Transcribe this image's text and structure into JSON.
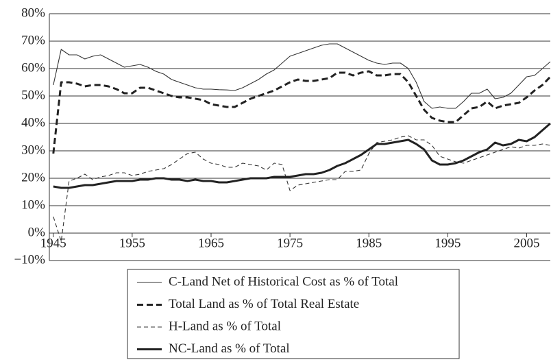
{
  "chart_data": {
    "type": "line",
    "x": [
      1945,
      1946,
      1947,
      1948,
      1949,
      1950,
      1951,
      1952,
      1953,
      1954,
      1955,
      1956,
      1957,
      1958,
      1959,
      1960,
      1961,
      1962,
      1963,
      1964,
      1965,
      1966,
      1967,
      1968,
      1969,
      1970,
      1971,
      1972,
      1973,
      1974,
      1975,
      1976,
      1977,
      1978,
      1979,
      1980,
      1981,
      1982,
      1983,
      1984,
      1985,
      1986,
      1987,
      1988,
      1989,
      1990,
      1991,
      1992,
      1993,
      1994,
      1995,
      1996,
      1997,
      1998,
      1999,
      2000,
      2001,
      2002,
      2003,
      2004,
      2005,
      2006,
      2007,
      2008
    ],
    "series": [
      {
        "name": "C-Land Net of Historical Cost as % of Total",
        "color": "#333333",
        "style": "solid",
        "weight": "thin",
        "values": [
          54,
          67,
          65,
          65,
          63.5,
          64.5,
          65,
          63.5,
          62,
          60.5,
          61,
          61.5,
          60.5,
          59,
          58,
          56,
          55,
          54,
          53,
          52.5,
          52.5,
          52.3,
          52.2,
          52,
          53,
          54.5,
          56,
          58,
          59.5,
          62,
          64.5,
          65.5,
          66.5,
          67.5,
          68.5,
          69,
          69,
          67.5,
          66,
          64.5,
          63,
          62,
          61.5,
          62,
          62,
          60,
          55,
          48,
          45.5,
          46,
          45.5,
          45.5,
          48,
          51,
          51,
          52.5,
          49,
          49.5,
          51,
          54,
          57,
          57.5,
          60,
          62.5
        ]
      },
      {
        "name": "Total Land as % of Total Real Estate",
        "color": "#222222",
        "style": "dashed",
        "weight": "thick",
        "values": [
          29,
          55,
          55,
          54.5,
          53.5,
          54,
          54,
          53.5,
          52.5,
          51,
          51,
          53,
          53,
          52,
          51,
          50,
          49.5,
          49.5,
          49,
          48.5,
          47,
          46.5,
          46,
          46,
          47.5,
          49,
          50,
          51,
          52,
          53.5,
          55,
          56,
          55.5,
          55.5,
          56,
          56.5,
          58.5,
          58.5,
          57.5,
          58.5,
          59,
          57.5,
          57.5,
          58,
          58,
          55,
          50,
          45,
          42,
          41,
          40.5,
          40.5,
          43,
          45.5,
          46,
          48,
          45.5,
          46.5,
          47,
          47.5,
          49.5,
          52,
          54,
          57
        ]
      },
      {
        "name": "H-Land as % of Total",
        "color": "#333333",
        "style": "dashed",
        "weight": "thin",
        "values": [
          6,
          -3,
          19,
          20,
          21.5,
          19.5,
          20.5,
          21,
          22,
          22,
          21,
          21.5,
          22.5,
          23,
          23.5,
          25,
          27,
          29,
          29.5,
          27,
          25.5,
          25,
          24,
          24,
          25.5,
          25,
          24.5,
          23,
          25.5,
          25,
          15.5,
          17.5,
          18,
          18.5,
          19,
          19.5,
          19.5,
          22.5,
          22.5,
          23,
          29,
          33,
          33.5,
          34,
          35,
          35.5,
          34,
          34,
          32,
          28,
          27,
          26,
          25.5,
          26.5,
          27.5,
          28.5,
          29.5,
          30.5,
          31.5,
          31,
          32,
          32,
          32.5,
          32
        ]
      },
      {
        "name": "NC-Land as % of Total",
        "color": "#222222",
        "style": "solid",
        "weight": "thick",
        "values": [
          17,
          16.5,
          16.5,
          17,
          17.5,
          17.5,
          18,
          18.5,
          19,
          19,
          19,
          19.5,
          19.5,
          20,
          20,
          19.5,
          19.5,
          19,
          19.5,
          19,
          19,
          18.5,
          18.5,
          19,
          19.5,
          20,
          20,
          20,
          20.5,
          20.5,
          20.5,
          21,
          21.5,
          21.5,
          22,
          23,
          24.5,
          25.5,
          27,
          28.5,
          30.5,
          32.5,
          32.5,
          33,
          33.5,
          34,
          32.5,
          30.5,
          26.5,
          25,
          25,
          25.5,
          26.5,
          28,
          29.5,
          30.5,
          33,
          32,
          32.5,
          34,
          33.5,
          35,
          37.5,
          40
        ]
      }
    ],
    "xlim": [
      1944.5,
      2008
    ],
    "xticks": [
      1945,
      1955,
      1965,
      1975,
      1985,
      1995,
      2005
    ],
    "ylim": [
      -10,
      80
    ],
    "yticks": [
      {
        "value": -10,
        "label": "−10%"
      },
      {
        "value": 0,
        "label": "0%"
      },
      {
        "value": 10,
        "label": "10%"
      },
      {
        "value": 20,
        "label": "20%"
      },
      {
        "value": 30,
        "label": "30%"
      },
      {
        "value": 40,
        "label": "40%"
      },
      {
        "value": 50,
        "label": "50%"
      },
      {
        "value": 60,
        "label": "60%"
      },
      {
        "value": 70,
        "label": "70%"
      },
      {
        "value": 80,
        "label": "80%"
      }
    ],
    "grid": true,
    "legend": "bottom"
  }
}
